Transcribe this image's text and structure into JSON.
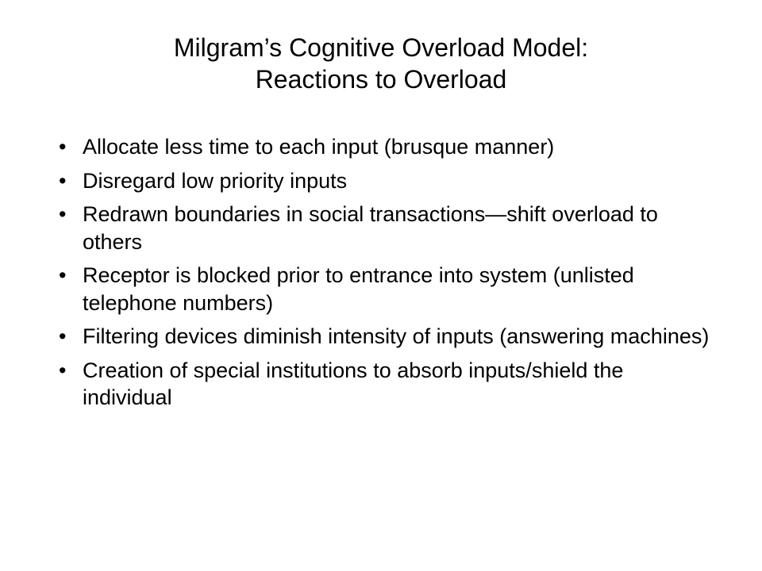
{
  "slide": {
    "title_line1": "Milgram’s Cognitive Overload Model:",
    "title_line2": "Reactions to Overload",
    "bullets": [
      "Allocate less time to each input (brusque manner)",
      "Disregard low priority inputs",
      "Redrawn boundaries in social transactions—shift overload to others",
      "Receptor is blocked prior to entrance into system (unlisted telephone numbers)",
      "Filtering devices diminish intensity of inputs (answering machines)",
      "Creation of special institutions to absorb inputs/shield the individual"
    ]
  },
  "style": {
    "background_color": "#ffffff",
    "text_color": "#000000",
    "title_fontsize": 32,
    "body_fontsize": 27,
    "font_family": "Arial"
  }
}
